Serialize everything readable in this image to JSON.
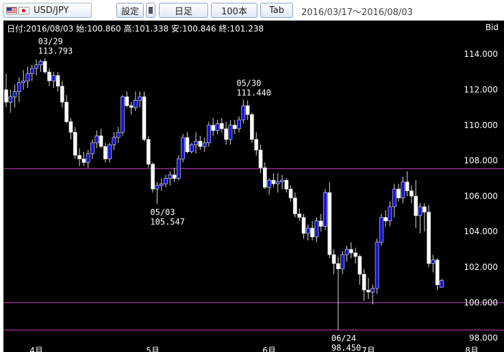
{
  "toolbar": {
    "pair": "USD/JPY",
    "settings_label": "設定",
    "timeframe_label": "日足",
    "count_label": "100本",
    "tab_label": "Tab",
    "period": "2016/03/17～2016/08/03"
  },
  "header": {
    "ohlc": "日付:2016/08/03 始:100.860 高:101.338 安:100.846 終:101.238",
    "price_type": "Bid"
  },
  "colors": {
    "up": "#1010dd",
    "down": "#ffffff",
    "hline": "#cc44cc"
  },
  "chart_data": {
    "type": "candlestick",
    "y_ticks": [
      "114.000",
      "112.000",
      "110.000",
      "108.000",
      "106.000",
      "104.000",
      "102.000",
      "100.000",
      "98.000"
    ],
    "ylim": [
      97.6,
      115.9
    ],
    "month_labels": [
      "4月",
      "5月",
      "6月",
      "7月",
      "8月"
    ],
    "month_positions": [
      7,
      34,
      61,
      84,
      108
    ],
    "horizontal_lines": [
      107.55,
      100.0,
      98.45
    ],
    "price_labels": [
      {
        "date": "03/29",
        "value": "113.793",
        "index": 9
      },
      {
        "date": "05/30",
        "value": "111.440",
        "index": 55
      },
      {
        "date": "05/03",
        "value": "105.547",
        "index": 35
      },
      {
        "date": "06/24",
        "value": "98.450",
        "index": 77
      }
    ],
    "candles": [
      [
        112.0,
        112.9,
        111.0,
        111.3
      ],
      [
        111.3,
        112.0,
        110.7,
        111.6
      ],
      [
        111.6,
        112.3,
        111.0,
        111.9
      ],
      [
        111.9,
        112.7,
        111.3,
        112.4
      ],
      [
        112.4,
        113.1,
        112.0,
        112.5
      ],
      [
        112.5,
        113.3,
        112.1,
        112.9
      ],
      [
        112.9,
        113.4,
        112.5,
        113.2
      ],
      [
        113.2,
        113.7,
        112.8,
        113.4
      ],
      [
        113.4,
        113.7,
        113.0,
        113.6
      ],
      [
        113.6,
        113.79,
        112.9,
        113.0
      ],
      [
        113.0,
        113.2,
        112.2,
        112.5
      ],
      [
        112.5,
        113.0,
        112.1,
        112.8
      ],
      [
        112.8,
        113.0,
        111.9,
        112.2
      ],
      [
        112.2,
        112.5,
        111.0,
        111.3
      ],
      [
        111.3,
        111.7,
        110.1,
        110.2
      ],
      [
        110.2,
        110.4,
        109.2,
        109.6
      ],
      [
        109.6,
        109.9,
        108.1,
        108.3
      ],
      [
        108.3,
        108.7,
        107.7,
        108.1
      ],
      [
        108.1,
        108.5,
        107.7,
        107.9
      ],
      [
        107.9,
        108.6,
        107.6,
        108.4
      ],
      [
        108.4,
        109.2,
        108.1,
        109.0
      ],
      [
        109.0,
        109.7,
        108.7,
        109.4
      ],
      [
        109.4,
        109.8,
        108.7,
        108.8
      ],
      [
        108.8,
        109.0,
        107.9,
        108.1
      ],
      [
        108.1,
        109.0,
        107.9,
        108.9
      ],
      [
        108.9,
        109.6,
        108.6,
        109.3
      ],
      [
        109.3,
        109.9,
        109.0,
        109.6
      ],
      [
        109.6,
        111.7,
        109.4,
        111.6
      ],
      [
        111.6,
        111.9,
        111.0,
        111.1
      ],
      [
        111.1,
        111.3,
        110.6,
        111.0
      ],
      [
        111.0,
        111.9,
        110.8,
        111.4
      ],
      [
        111.4,
        111.9,
        111.0,
        111.6
      ],
      [
        111.6,
        111.9,
        109.1,
        109.2
      ],
      [
        109.2,
        109.4,
        107.6,
        107.8
      ],
      [
        107.8,
        107.9,
        106.2,
        106.4
      ],
      [
        106.4,
        106.8,
        105.55,
        106.6
      ],
      [
        106.6,
        107.0,
        106.3,
        106.7
      ],
      [
        106.7,
        107.2,
        106.5,
        107.0
      ],
      [
        107.0,
        107.4,
        106.6,
        107.2
      ],
      [
        107.2,
        107.6,
        106.8,
        107.0
      ],
      [
        107.0,
        108.3,
        106.9,
        108.1
      ],
      [
        108.1,
        109.5,
        107.9,
        109.3
      ],
      [
        109.3,
        109.6,
        108.4,
        108.5
      ],
      [
        108.5,
        109.0,
        108.4,
        108.9
      ],
      [
        108.9,
        109.6,
        108.4,
        109.1
      ],
      [
        109.1,
        109.4,
        108.6,
        108.8
      ],
      [
        108.8,
        109.3,
        108.5,
        109.0
      ],
      [
        109.0,
        110.2,
        108.8,
        110.0
      ],
      [
        110.0,
        110.4,
        109.4,
        109.7
      ],
      [
        109.7,
        110.3,
        109.5,
        110.1
      ],
      [
        110.1,
        110.4,
        109.6,
        109.8
      ],
      [
        109.8,
        110.2,
        108.9,
        109.2
      ],
      [
        109.2,
        110.3,
        108.9,
        110.0
      ],
      [
        110.0,
        110.3,
        109.5,
        109.8
      ],
      [
        109.8,
        110.5,
        109.6,
        110.3
      ],
      [
        110.3,
        111.44,
        110.1,
        111.1
      ],
      [
        111.1,
        111.4,
        110.3,
        110.6
      ],
      [
        110.6,
        110.7,
        109.0,
        109.2
      ],
      [
        109.2,
        109.6,
        108.3,
        108.6
      ],
      [
        108.6,
        108.9,
        107.3,
        107.6
      ],
      [
        107.6,
        107.9,
        106.4,
        106.5
      ],
      [
        106.5,
        107.0,
        106.1,
        106.9
      ],
      [
        106.9,
        107.3,
        106.5,
        106.7
      ],
      [
        106.7,
        107.3,
        106.2,
        106.8
      ],
      [
        106.8,
        107.2,
        106.4,
        106.9
      ],
      [
        106.9,
        107.0,
        106.2,
        106.4
      ],
      [
        106.4,
        106.6,
        105.7,
        105.9
      ],
      [
        105.9,
        106.2,
        104.8,
        105.0
      ],
      [
        105.0,
        105.3,
        104.6,
        104.8
      ],
      [
        104.8,
        105.0,
        103.6,
        103.9
      ],
      [
        103.9,
        104.4,
        103.5,
        104.2
      ],
      [
        104.2,
        104.6,
        103.5,
        103.7
      ],
      [
        103.7,
        104.8,
        103.4,
        104.6
      ],
      [
        104.6,
        105.0,
        104.0,
        104.3
      ],
      [
        104.3,
        106.4,
        104.1,
        106.2
      ],
      [
        106.2,
        106.8,
        102.5,
        102.7
      ],
      [
        102.7,
        103.0,
        101.6,
        102.2
      ],
      [
        102.2,
        102.6,
        98.45,
        101.9
      ],
      [
        101.9,
        102.9,
        101.6,
        102.7
      ],
      [
        102.7,
        103.2,
        102.3,
        103.0
      ],
      [
        103.0,
        103.4,
        102.5,
        102.8
      ],
      [
        102.8,
        103.1,
        102.2,
        102.6
      ],
      [
        102.6,
        102.7,
        101.0,
        101.6
      ],
      [
        101.6,
        101.9,
        100.1,
        100.7
      ],
      [
        100.7,
        101.4,
        100.2,
        100.6
      ],
      [
        100.6,
        101.0,
        99.9,
        100.8
      ],
      [
        100.8,
        103.6,
        100.5,
        103.4
      ],
      [
        103.4,
        105.0,
        103.2,
        104.8
      ],
      [
        104.8,
        105.2,
        104.3,
        104.6
      ],
      [
        104.6,
        105.7,
        104.3,
        105.4
      ],
      [
        105.4,
        106.7,
        104.8,
        106.4
      ],
      [
        106.4,
        106.7,
        105.7,
        105.9
      ],
      [
        105.9,
        107.1,
        105.6,
        106.8
      ],
      [
        106.8,
        107.4,
        106.0,
        106.3
      ],
      [
        106.3,
        106.6,
        105.6,
        106.0
      ],
      [
        106.0,
        106.9,
        104.2,
        104.9
      ],
      [
        104.9,
        105.6,
        103.9,
        105.4
      ],
      [
        105.4,
        105.6,
        104.0,
        105.1
      ],
      [
        105.1,
        105.5,
        102.0,
        102.2
      ],
      [
        102.2,
        102.7,
        101.7,
        102.4
      ],
      [
        102.4,
        102.5,
        100.7,
        101.0
      ],
      [
        100.86,
        101.34,
        100.85,
        101.24
      ]
    ]
  }
}
